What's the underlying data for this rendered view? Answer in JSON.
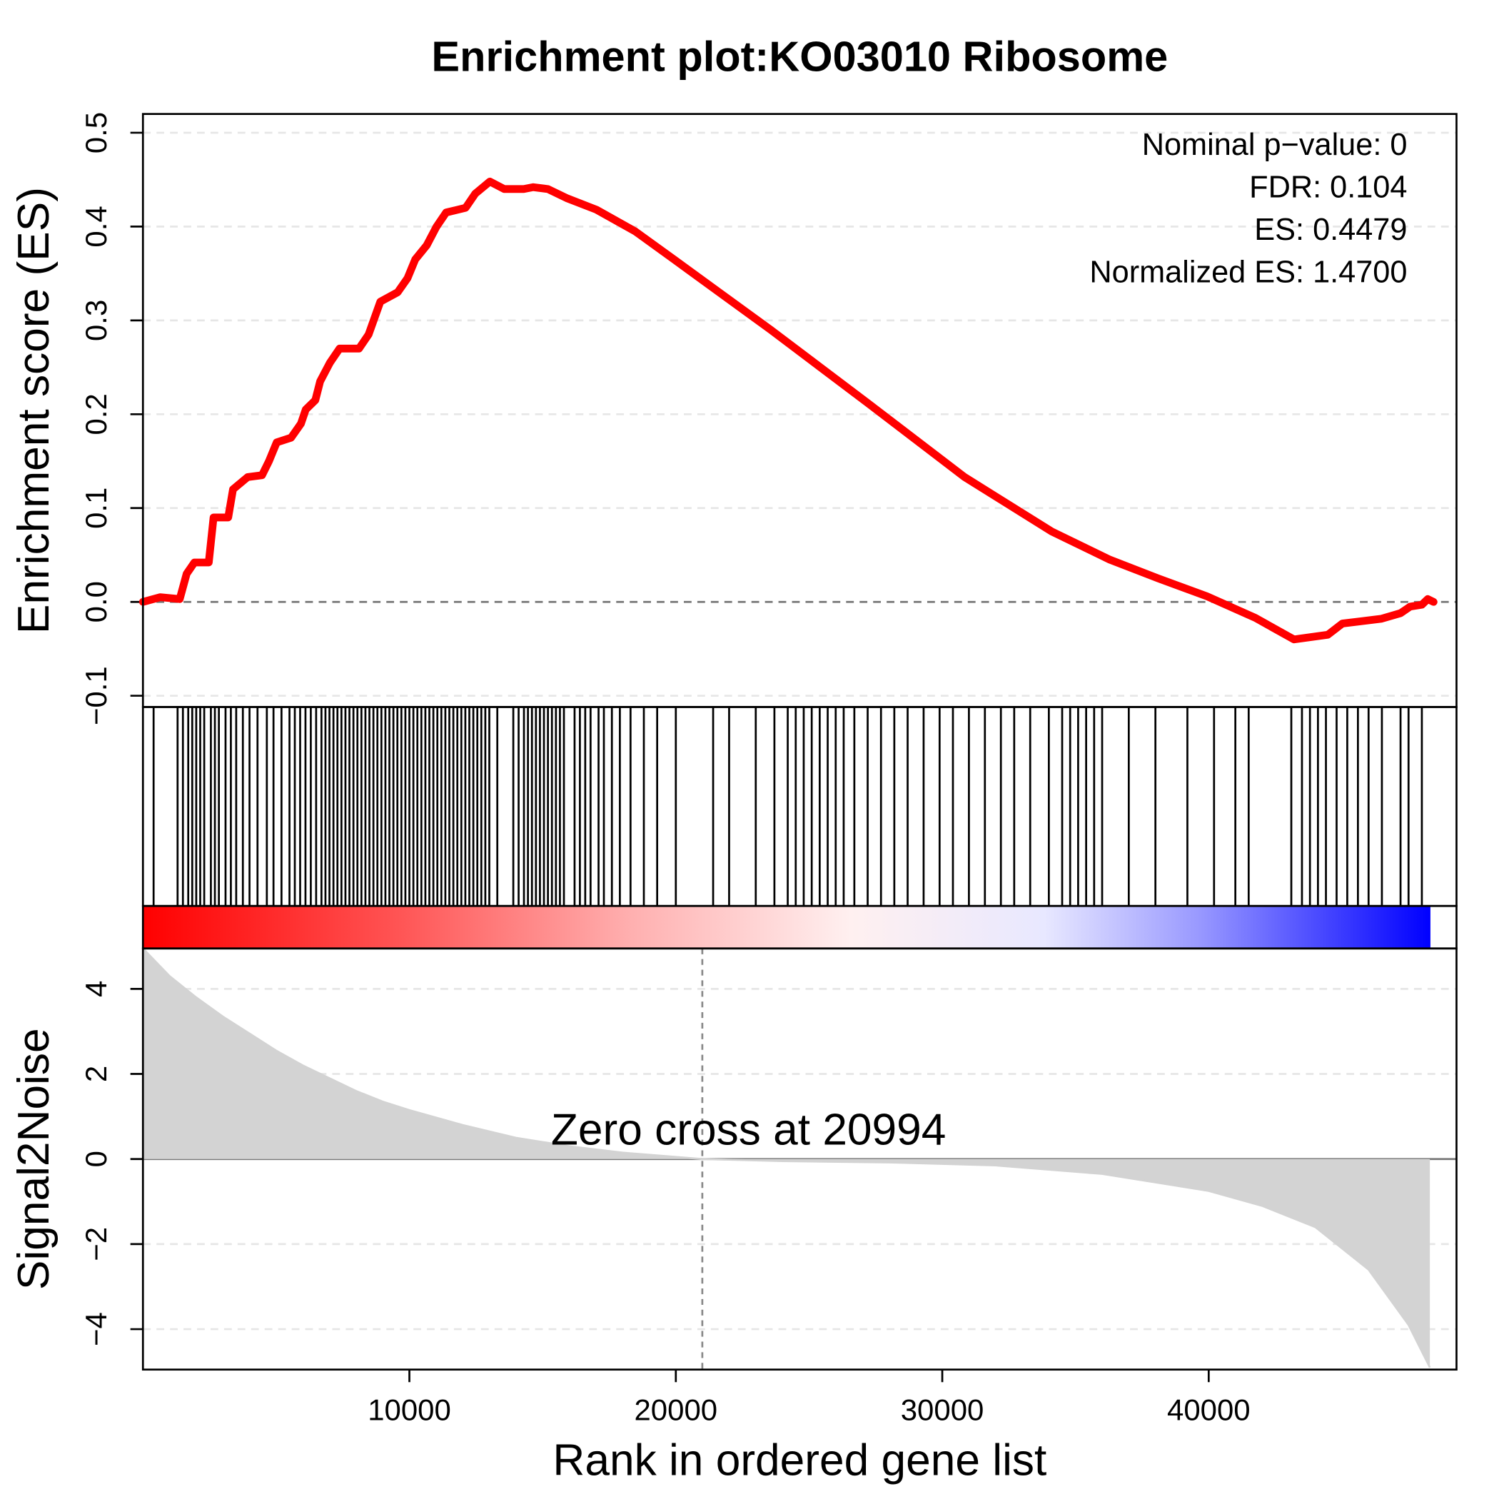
{
  "chart_data": [
    {
      "type": "line",
      "title": "Enrichment plot:KO03010 Ribosome",
      "ylabel": "Enrichment score (ES)",
      "color": "#ff0000",
      "xlim": [
        0,
        49300
      ],
      "ylim": [
        -0.112,
        0.52
      ],
      "yticks": [
        {
          "value": -0.1,
          "label": "−0.1"
        },
        {
          "value": 0,
          "label": "0.0"
        },
        0.1,
        0.2,
        0.3,
        0.4,
        0.5
      ],
      "grid": true,
      "annotations": [
        "Nominal p−value: 0",
        "FDR: 0.104",
        "ES: 0.4479",
        "Normalized ES: 1.4700"
      ],
      "x": [
        0,
        650,
        1380,
        1640,
        1930,
        2470,
        2650,
        3200,
        3380,
        3930,
        4470,
        4730,
        5020,
        5560,
        5930,
        6110,
        6470,
        6650,
        7020,
        7380,
        8110,
        8470,
        8910,
        9560,
        9930,
        10220,
        10650,
        11020,
        11380,
        12110,
        12470,
        13020,
        13560,
        14290,
        14650,
        15200,
        15930,
        17020,
        18470,
        19930,
        23560,
        27200,
        30840,
        34110,
        36290,
        38110,
        39930,
        41750,
        43200,
        44470,
        45020,
        46470,
        47200,
        47560,
        48000,
        48220,
        48440
      ],
      "values": [
        0.0,
        0.005,
        0.003,
        0.03,
        0.042,
        0.042,
        0.09,
        0.09,
        0.12,
        0.133,
        0.135,
        0.15,
        0.17,
        0.175,
        0.19,
        0.205,
        0.215,
        0.235,
        0.255,
        0.27,
        0.27,
        0.285,
        0.32,
        0.33,
        0.345,
        0.365,
        0.38,
        0.4,
        0.415,
        0.42,
        0.435,
        0.448,
        0.44,
        0.44,
        0.442,
        0.44,
        0.43,
        0.418,
        0.395,
        0.365,
        0.29,
        0.212,
        0.133,
        0.075,
        0.045,
        0.025,
        0.006,
        -0.017,
        -0.04,
        -0.035,
        -0.023,
        -0.018,
        -0.012,
        -0.005,
        -0.003,
        0.003,
        0.0
      ]
    },
    {
      "type": "rug",
      "color": "#000000",
      "xlim": [
        0,
        49300
      ],
      "x": [
        400,
        1300,
        1500,
        1700,
        1850,
        2000,
        2150,
        2300,
        2550,
        2700,
        2850,
        3100,
        3300,
        3500,
        3750,
        4000,
        4300,
        4650,
        4900,
        5200,
        5500,
        5700,
        5900,
        6100,
        6300,
        6500,
        6700,
        6850,
        7000,
        7150,
        7300,
        7450,
        7600,
        7750,
        7900,
        8050,
        8200,
        8350,
        8500,
        8650,
        8800,
        8950,
        9100,
        9250,
        9400,
        9550,
        9700,
        9850,
        10000,
        10150,
        10300,
        10450,
        10600,
        10750,
        10900,
        11050,
        11200,
        11350,
        11500,
        11650,
        11800,
        11950,
        12100,
        12250,
        12400,
        12550,
        12700,
        12850,
        13000,
        13300,
        13900,
        14100,
        14300,
        14450,
        14600,
        14750,
        14900,
        15050,
        15200,
        15350,
        15500,
        15650,
        15800,
        16200,
        16400,
        16600,
        16800,
        17100,
        17300,
        17600,
        17900,
        18300,
        18800,
        19300,
        20000,
        21400,
        22000,
        23000,
        23700,
        24200,
        24500,
        24800,
        25100,
        25400,
        25700,
        26000,
        26300,
        26700,
        27200,
        27700,
        28200,
        28700,
        29300,
        29900,
        30400,
        31000,
        31600,
        32200,
        32700,
        33300,
        34000,
        34500,
        34800,
        35100,
        35400,
        35700,
        36000,
        37000,
        38000,
        39200,
        40200,
        41000,
        41500,
        43100,
        43500,
        43800,
        44100,
        44400,
        44800,
        45200,
        45600,
        46000,
        46500,
        47200,
        47500,
        48000
      ]
    },
    {
      "type": "area",
      "ylabel": "Signal2Noise",
      "xlabel": "Rank in ordered gene list",
      "color": "#d3d3d3",
      "xlim": [
        0,
        49300
      ],
      "ylim": [
        -4.95,
        4.95
      ],
      "xticks": [
        10000,
        20000,
        30000,
        40000
      ],
      "yticks": [
        {
          "value": -4,
          "label": "−4"
        },
        {
          "value": -2,
          "label": "−2"
        },
        0,
        2,
        4
      ],
      "grid": true,
      "annotation": "Zero cross at 20994",
      "vline": 20994,
      "x": [
        0,
        1000,
        2000,
        3000,
        4000,
        5000,
        6000,
        7000,
        8000,
        9000,
        10000,
        12000,
        14000,
        16000,
        18000,
        20994,
        24000,
        28000,
        32000,
        36000,
        40000,
        42000,
        44000,
        46000,
        47500,
        48300
      ],
      "values": [
        4.95,
        4.3,
        3.8,
        3.35,
        2.95,
        2.55,
        2.2,
        1.9,
        1.6,
        1.35,
        1.15,
        0.8,
        0.5,
        0.3,
        0.15,
        0,
        -0.05,
        -0.08,
        -0.15,
        -0.35,
        -0.75,
        -1.1,
        -1.6,
        -2.6,
        -3.9,
        -4.9
      ]
    }
  ]
}
